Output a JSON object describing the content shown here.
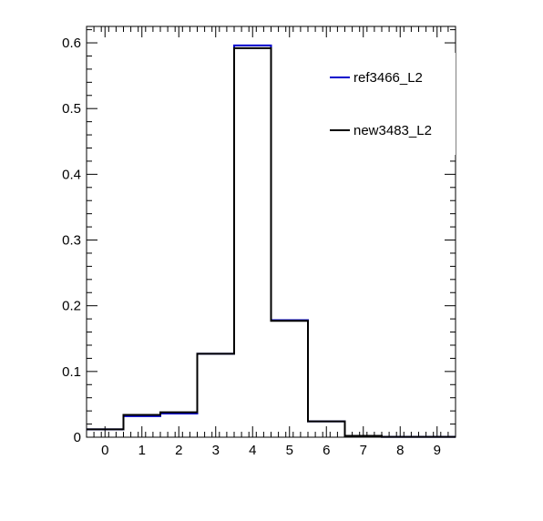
{
  "chart_data": {
    "type": "histogram-step",
    "x_bin_edges": [
      -0.5,
      0.5,
      1.5,
      2.5,
      3.5,
      4.5,
      5.5,
      6.5,
      7.5,
      8.5,
      9.5
    ],
    "x_ticks": [
      "0",
      "1",
      "2",
      "3",
      "4",
      "5",
      "6",
      "7",
      "8",
      "9"
    ],
    "xlim": [
      -0.5,
      9.5
    ],
    "ylim": [
      0,
      0.625
    ],
    "y_ticks": [
      "0",
      "0.1",
      "0.2",
      "0.3",
      "0.4",
      "0.5",
      "0.6"
    ],
    "series": [
      {
        "name": "ref3466_L2",
        "color": "#0000cc",
        "values": [
          0.012,
          0.032,
          0.036,
          0.127,
          0.596,
          0.178,
          0.024,
          0.002,
          0.0005,
          0.0005
        ]
      },
      {
        "name": "new3483_L2",
        "color": "#000000",
        "values": [
          0.012,
          0.034,
          0.038,
          0.127,
          0.592,
          0.177,
          0.024,
          0.002,
          0.0005,
          0.0005
        ]
      }
    ],
    "legend_position": "top-right"
  }
}
